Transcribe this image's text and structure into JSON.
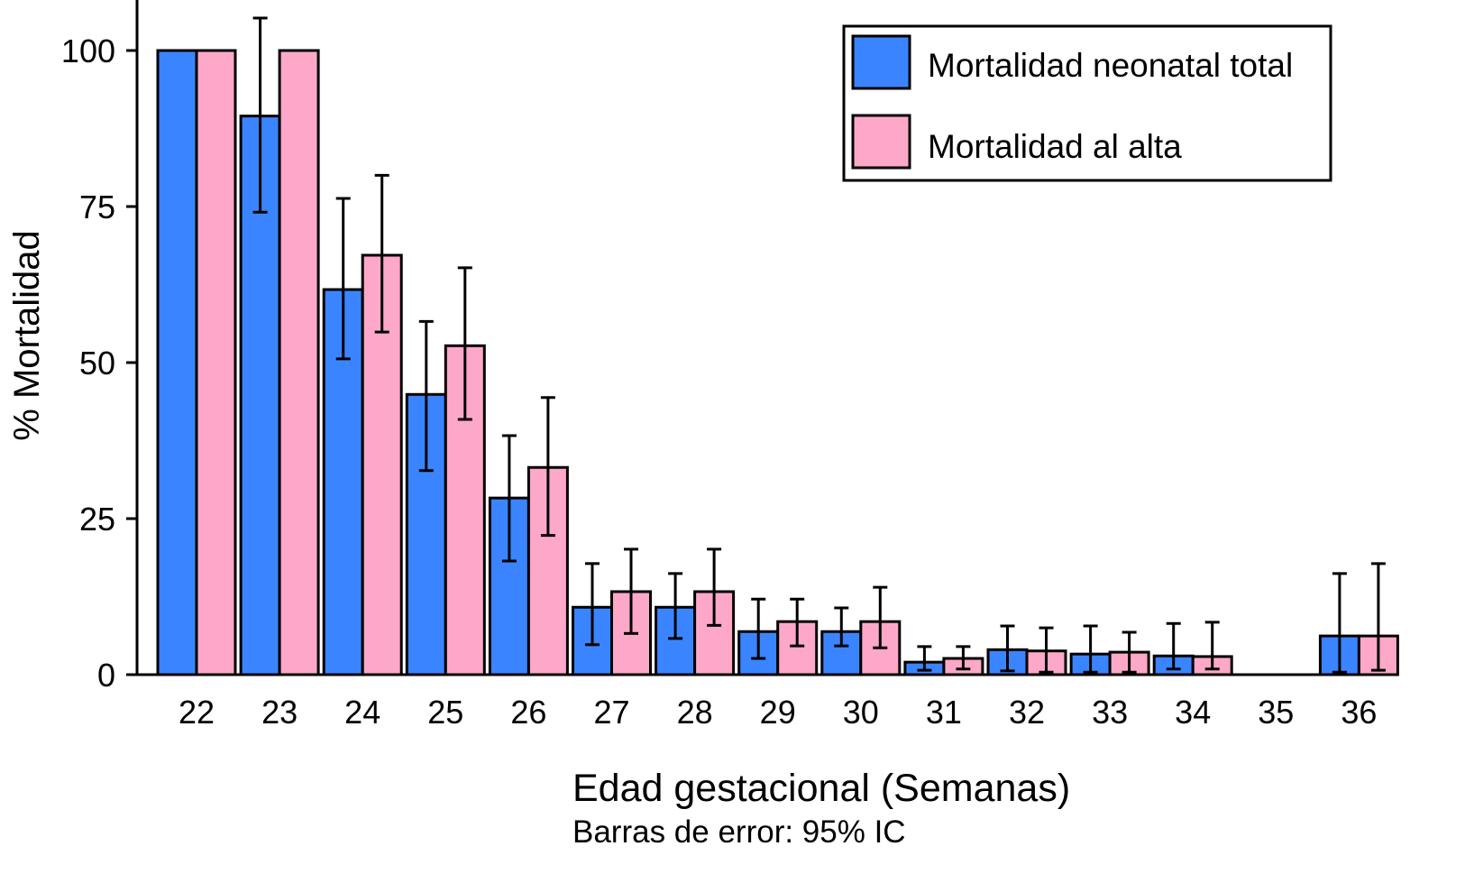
{
  "chart_data": {
    "type": "bar",
    "xlabel": "Edad gestacional (Semanas)",
    "subtitle": "Barras de error: 95% IC",
    "ylabel": "% Mortalidad",
    "ylim": [
      0,
      105
    ],
    "yticks": [
      0,
      25,
      50,
      75,
      100
    ],
    "grid": false,
    "legend_position": "top-right",
    "categories": [
      "22",
      "23",
      "24",
      "25",
      "26",
      "27",
      "28",
      "29",
      "30",
      "31",
      "32",
      "33",
      "34",
      "35",
      "36"
    ],
    "series": [
      {
        "name": "Mortalidad neonatal total",
        "color": "#3a85ff",
        "values": [
          100,
          89.5,
          61.7,
          44.9,
          28.3,
          10.8,
          10.8,
          6.9,
          6.9,
          2.0,
          4.0,
          3.3,
          3.0,
          0,
          6.2
        ],
        "ci_low": [
          null,
          74.1,
          50.6,
          32.7,
          18.2,
          4.8,
          5.8,
          2.6,
          4.6,
          0.7,
          0.6,
          0.4,
          0.9,
          null,
          0.4
        ],
        "ci_high": [
          null,
          105.2,
          76.3,
          56.6,
          38.3,
          17.8,
          16.2,
          12.1,
          10.7,
          4.5,
          7.8,
          7.8,
          8.2,
          null,
          16.2
        ]
      },
      {
        "name": "Mortalidad al alta",
        "color": "#fda8c9",
        "values": [
          100,
          100,
          67.2,
          52.7,
          33.2,
          13.3,
          13.3,
          8.5,
          8.5,
          2.6,
          3.8,
          3.6,
          2.9,
          0,
          6.2
        ],
        "ci_low": [
          null,
          null,
          54.9,
          40.9,
          22.3,
          6.6,
          7.9,
          4.6,
          4.3,
          0.9,
          0.4,
          0.4,
          0.9,
          null,
          0.7
        ],
        "ci_high": [
          null,
          null,
          80.0,
          65.2,
          44.4,
          20.1,
          20.1,
          12.1,
          14.0,
          4.5,
          7.5,
          6.8,
          8.4,
          null,
          17.8
        ]
      }
    ]
  }
}
